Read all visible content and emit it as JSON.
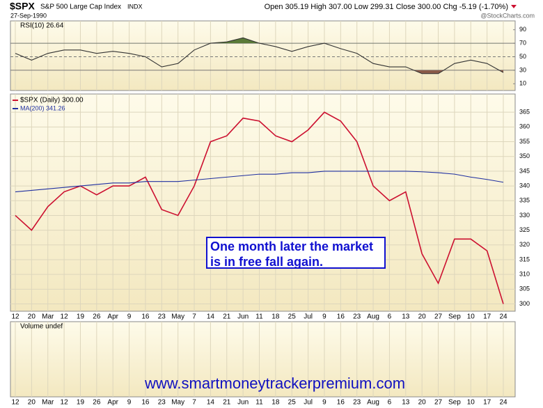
{
  "header": {
    "symbol": "$SPX",
    "name": "S&P 500 Large Cap Index",
    "exchange": "INDX",
    "date": "27-Sep-1990",
    "quote": "Open 305.19 High 307.00 Low 299.31 Close 300.00 Chg -5.19 (-1.70%)",
    "credit": "@StockCharts.com"
  },
  "annotation": "One month later the market is in free fall again.",
  "footer": "www.smartmoneytrackerpremium.com",
  "chart_data": [
    {
      "type": "line",
      "title": "RSI(10) 26.64",
      "categories": [
        "12",
        "20",
        "Mar",
        "12",
        "19",
        "26",
        "Apr",
        "9",
        "16",
        "23",
        "May",
        "7",
        "14",
        "21",
        "Jun",
        "11",
        "18",
        "25",
        "Jul",
        "9",
        "16",
        "23",
        "Aug",
        "6",
        "13",
        "20",
        "27",
        "Sep",
        "10",
        "17",
        "24"
      ],
      "series": [
        {
          "name": "RSI(10)",
          "color": "#333333",
          "values": [
            55,
            45,
            55,
            60,
            60,
            55,
            58,
            55,
            50,
            35,
            40,
            60,
            70,
            72,
            78,
            70,
            65,
            58,
            65,
            70,
            62,
            55,
            40,
            35,
            35,
            25,
            25,
            40,
            45,
            40,
            26.64
          ]
        }
      ],
      "ylim": [
        0,
        100
      ],
      "yticks": [
        10,
        30,
        50,
        70,
        90
      ],
      "levels": [
        30,
        50,
        70
      ],
      "overbought_color": "#5a7a38",
      "oversold_color": "#8a5a48"
    },
    {
      "type": "line",
      "categories": [
        "12",
        "20",
        "Mar",
        "12",
        "19",
        "26",
        "Apr",
        "9",
        "16",
        "23",
        "May",
        "7",
        "14",
        "21",
        "Jun",
        "11",
        "18",
        "25",
        "Jul",
        "9",
        "16",
        "23",
        "Aug",
        "6",
        "13",
        "20",
        "27",
        "Sep",
        "10",
        "17",
        "24"
      ],
      "series": [
        {
          "name": "$SPX (Daily) 300.00",
          "color": "#cc1030",
          "values": [
            330,
            325,
            333,
            338,
            340,
            337,
            340,
            340,
            343,
            332,
            330,
            340,
            355,
            357,
            363,
            362,
            357,
            355,
            359,
            365,
            362,
            355,
            340,
            335,
            338,
            317,
            307,
            322,
            322,
            318,
            300
          ]
        },
        {
          "name": "MA(200) 341.26",
          "color": "#1f2fa0",
          "values": [
            338,
            338.5,
            339,
            339.5,
            340,
            340.5,
            341,
            341,
            341.5,
            341.5,
            341.5,
            342,
            342.5,
            343,
            343.5,
            344,
            344,
            344.5,
            344.5,
            345,
            345,
            345,
            345,
            345,
            345,
            344.8,
            344.5,
            344,
            343,
            342.2,
            341.26
          ]
        }
      ],
      "ylim": [
        298,
        370
      ],
      "yticks": [
        300,
        305,
        310,
        315,
        320,
        325,
        330,
        335,
        340,
        345,
        350,
        355,
        360,
        365
      ],
      "grid": true
    },
    {
      "type": "bar",
      "title": "Volume undef",
      "categories": [
        "12",
        "20",
        "Mar",
        "12",
        "19",
        "26",
        "Apr",
        "9",
        "16",
        "23",
        "May",
        "7",
        "14",
        "21",
        "Jun",
        "11",
        "18",
        "25",
        "Jul",
        "9",
        "16",
        "23",
        "Aug",
        "6",
        "13",
        "20",
        "27",
        "Sep",
        "10",
        "17",
        "24"
      ]
    }
  ]
}
